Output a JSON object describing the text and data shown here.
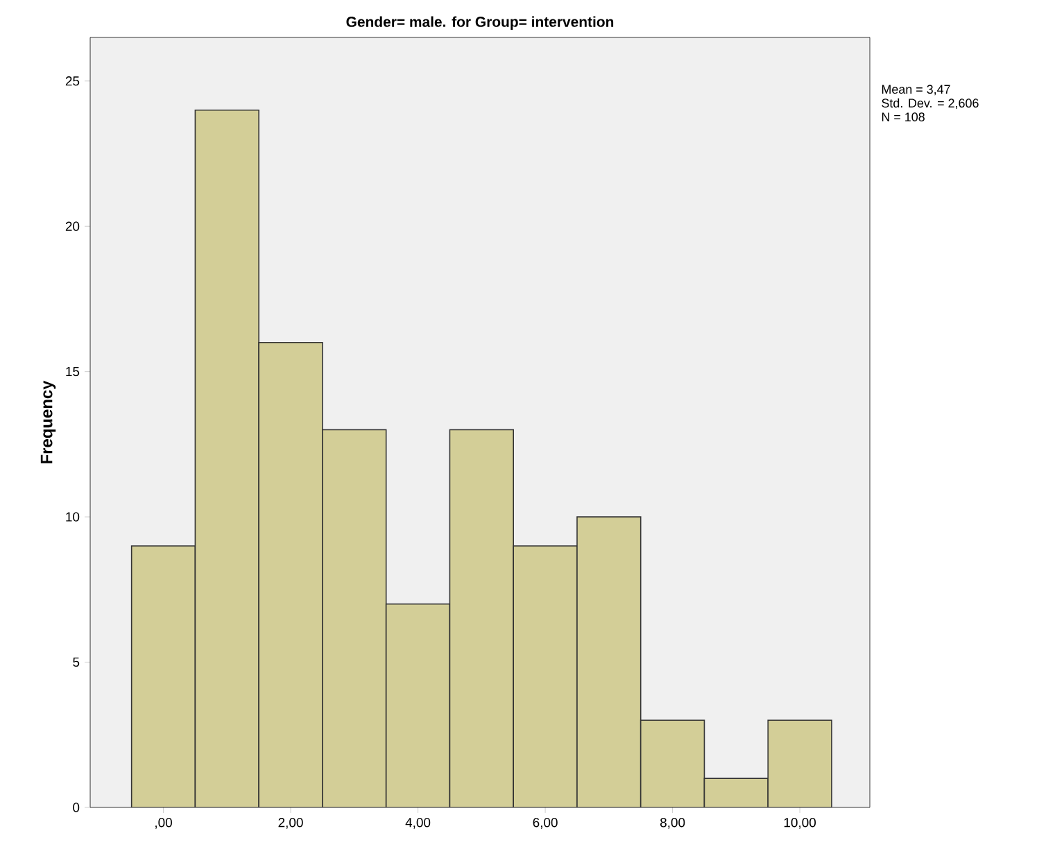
{
  "chart_data": {
    "type": "histogram",
    "title": "Gender= male. for Group= intervention",
    "ylabel": "Frequency",
    "bins": [
      -0.5,
      0.5,
      1.5,
      2.5,
      3.5,
      4.5,
      5.5,
      6.5,
      7.5,
      8.5,
      9.5,
      10.5
    ],
    "values": [
      9,
      24,
      16,
      13,
      7,
      13,
      9,
      10,
      3,
      1,
      3
    ],
    "color": "#d3ce97",
    "xlim": [
      -1.15,
      11.1
    ],
    "ylim": [
      0,
      26.5
    ],
    "xticks": [
      {
        "value": 0,
        "label": ",00"
      },
      {
        "value": 2,
        "label": "2,00"
      },
      {
        "value": 4,
        "label": "4,00"
      },
      {
        "value": 6,
        "label": "6,00"
      },
      {
        "value": 8,
        "label": "8,00"
      },
      {
        "value": 10,
        "label": "10,00"
      }
    ],
    "yticks": [
      0,
      5,
      10,
      15,
      20,
      25
    ],
    "annotations": [
      "Mean = 3,47",
      "Std. Dev. = 2,606",
      "N = 108"
    ]
  }
}
